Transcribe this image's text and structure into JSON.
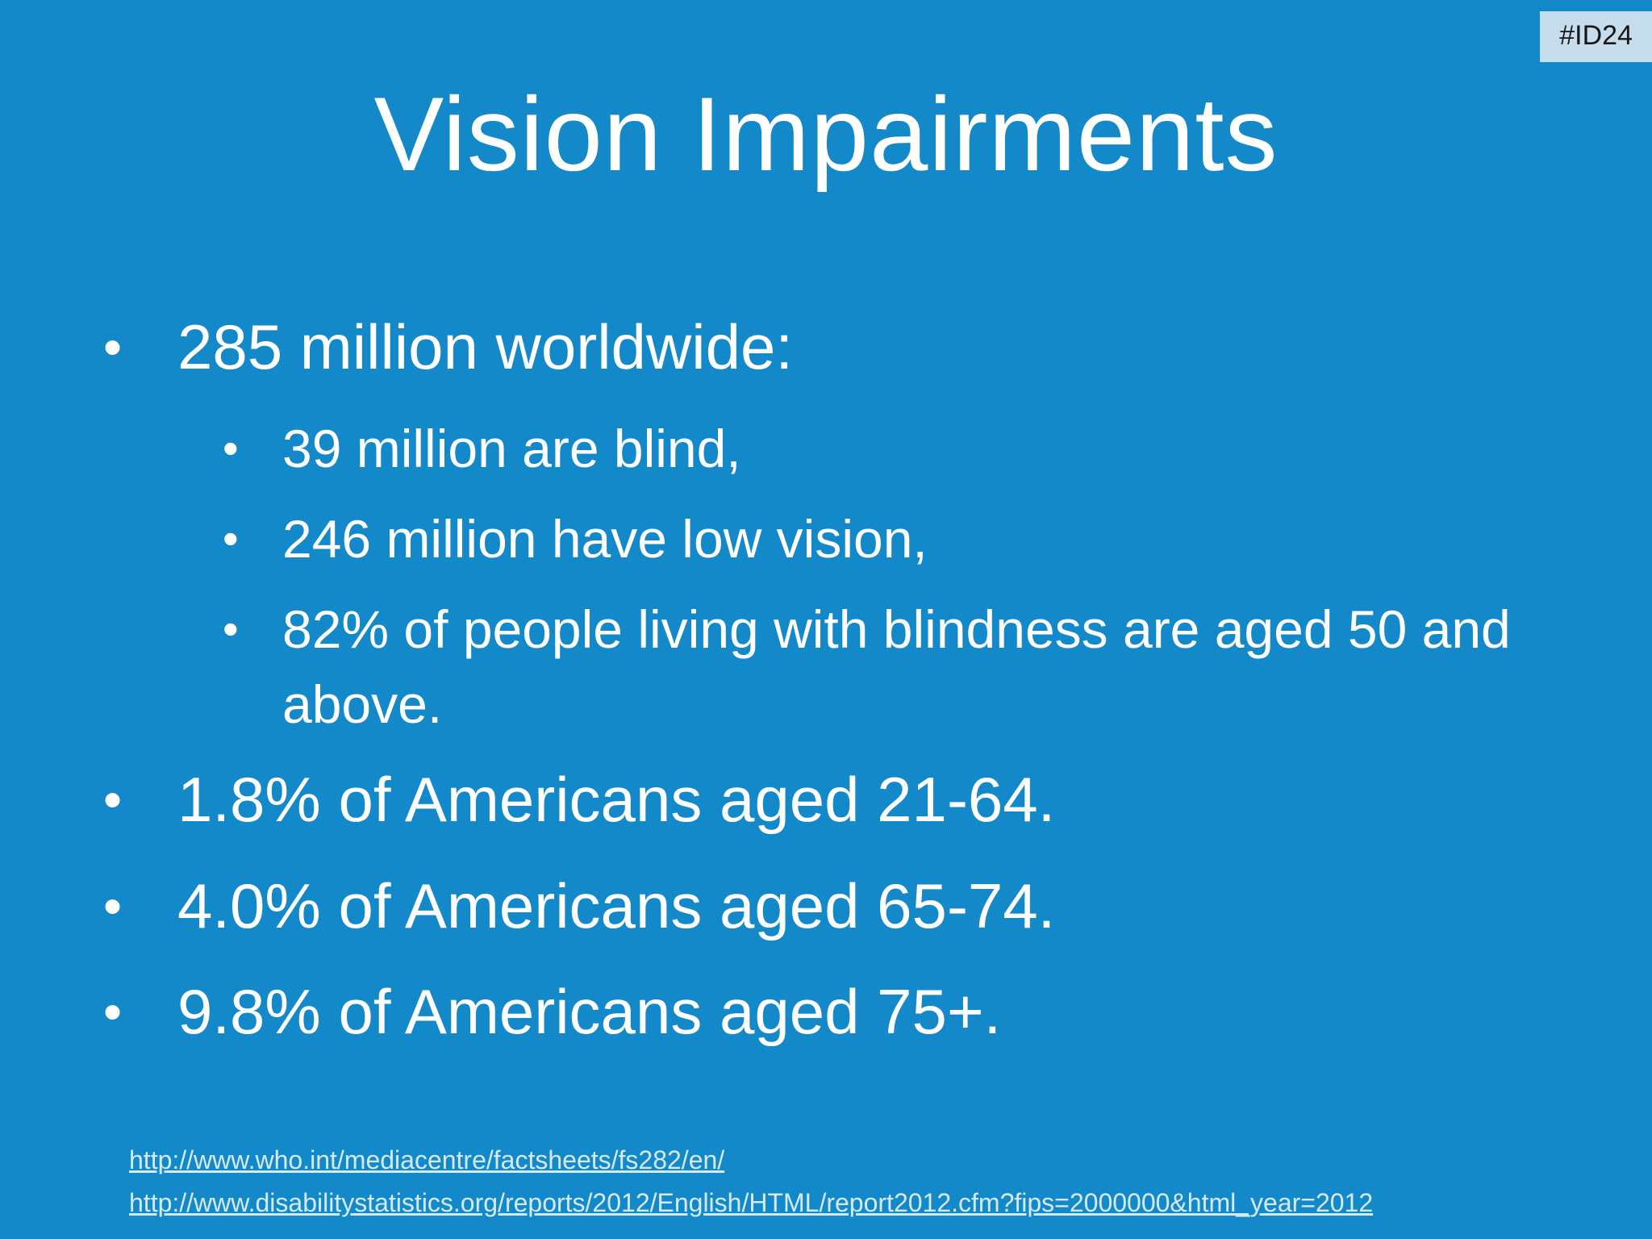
{
  "slide": {
    "badge": "#ID24",
    "title": "Vision Impairments",
    "bullet_char": "•",
    "bullets": [
      {
        "text": "285 million worldwide:",
        "sub": [
          "39 million are blind,",
          "246 million have low vision,",
          "82% of people living with blindness are aged 50 and above."
        ]
      },
      {
        "text": "1.8% of Americans aged 21-64."
      },
      {
        "text": "4.0% of Americans aged 65-74."
      },
      {
        "text": "9.8% of Americans aged 75+."
      }
    ],
    "links": [
      "http://www.who.int/mediacentre/factsheets/fs282/en/",
      "http://www.disabilitystatistics.org/reports/2012/English/HTML/report2012.cfm?fips=2000000&html_year=2012"
    ],
    "colors": {
      "background": "#1389ca",
      "text": "#ffffff",
      "badge_bg": "#c6dded",
      "badge_text": "#161616",
      "link": "#d5eaf7"
    }
  }
}
